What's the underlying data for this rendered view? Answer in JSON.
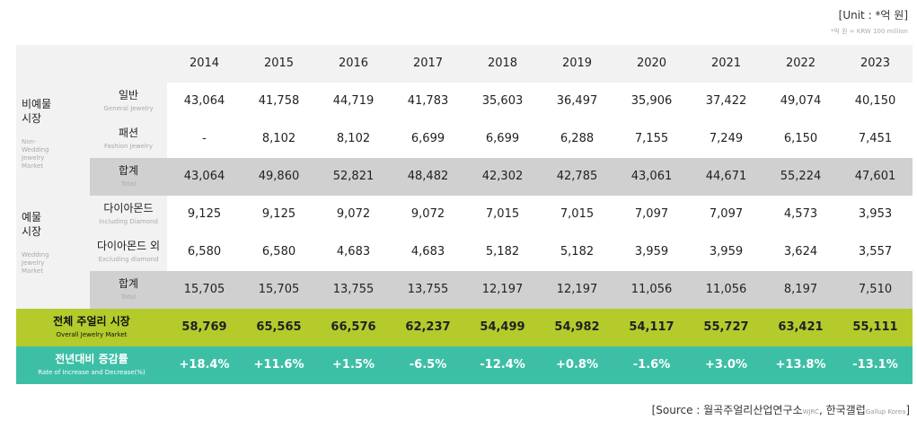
{
  "unit": "[Unit : *억 원]",
  "unit_note": "*억 원 = KRW 100 million",
  "table": {
    "years": [
      "2014",
      "2015",
      "2016",
      "2017",
      "2018",
      "2019",
      "2020",
      "2021",
      "2022",
      "2023"
    ],
    "groups": [
      {
        "label": "비예물\n시장",
        "label_en": "Non-\nWedding\nJewelry\nMarket"
      },
      {
        "label": "예물\n시장",
        "label_en": "Wedding\nJewelry\nMarket"
      }
    ],
    "rows": [
      {
        "label": "일반",
        "label_en": "General Jewelry",
        "values": [
          "43,064",
          "41,758",
          "44,719",
          "41,783",
          "35,603",
          "36,497",
          "35,906",
          "37,422",
          "49,074",
          "40,150"
        ]
      },
      {
        "label": "패션",
        "label_en": "Fashion Jewelry",
        "values": [
          "-",
          "8,102",
          "8,102",
          "6,699",
          "6,699",
          "6,288",
          "7,155",
          "7,249",
          "6,150",
          "7,451"
        ]
      },
      {
        "label": "합계",
        "label_en": "Total",
        "values": [
          "43,064",
          "49,860",
          "52,821",
          "48,482",
          "42,302",
          "42,785",
          "43,061",
          "44,671",
          "55,224",
          "47,601"
        ]
      },
      {
        "label": "다이아몬드",
        "label_en": "Including Diamond",
        "values": [
          "9,125",
          "9,125",
          "9,072",
          "9,072",
          "7,015",
          "7,015",
          "7,097",
          "7,097",
          "4,573",
          "3,953"
        ]
      },
      {
        "label": "다이아몬드 외",
        "label_en": "Excluding diamond",
        "values": [
          "6,580",
          "6,580",
          "4,683",
          "4,683",
          "5,182",
          "5,182",
          "3,959",
          "3,959",
          "3,624",
          "3,557"
        ]
      },
      {
        "label": "합계",
        "label_en": "Total",
        "values": [
          "15,705",
          "15,705",
          "13,755",
          "13,755",
          "12,197",
          "12,197",
          "11,056",
          "11,056",
          "8,197",
          "7,510"
        ]
      },
      {
        "label": "전체 주얼리 시장",
        "label_en": "Overall Jewelry Market",
        "values": [
          "58,769",
          "65,565",
          "66,576",
          "62,237",
          "54,499",
          "54,982",
          "54,117",
          "55,727",
          "63,421",
          "55,111"
        ]
      },
      {
        "label": "전년대비 증감률",
        "label_en": "Rate of Increase and Decrease(%)",
        "values": [
          "+18.4%",
          "+11.6%",
          "+1.5%",
          "-6.5%",
          "-12.4%",
          "+0.8%",
          "-1.6%",
          "+3.0%",
          "+13.8%",
          "-13.1%"
        ]
      }
    ]
  },
  "source": {
    "parts": [
      "[Source : 월곡주얼리산업연구소",
      "WJRC",
      ", 한국갤럽",
      "Gallup Korea",
      "]"
    ]
  }
}
